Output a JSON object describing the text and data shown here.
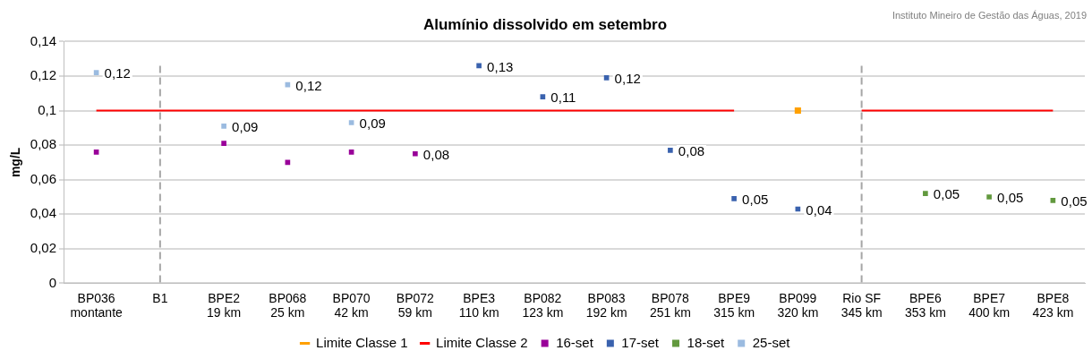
{
  "chart_data": {
    "type": "scatter",
    "title": "Alumínio dissolvido em setembro",
    "ylabel": "mg/L",
    "annotations": [
      "Instituto Mineiro de Gestão das Águas, 2019"
    ],
    "categories": [
      "BP036\nmontante",
      "B1",
      "BPE2\n19 km",
      "BP068\n25 km",
      "BP070\n42 km",
      "BP072\n59 km",
      "BPE3\n110 km",
      "BP082\n123 km",
      "BP083\n192 km",
      "BP078\n251 km",
      "BPE9\n315 km",
      "BP099\n320 km",
      "Rio SF\n345 km",
      "BPE6\n353 km",
      "BPE7\n400 km",
      "BPE8\n423 km"
    ],
    "series": [
      {
        "name": "Limite Classe 1",
        "type": "line",
        "marker": "square",
        "color": "#ffa000",
        "values": [
          null,
          null,
          null,
          null,
          null,
          null,
          null,
          null,
          null,
          null,
          null,
          0.1,
          null,
          null,
          null,
          null
        ]
      },
      {
        "name": "Limite Classe 2",
        "type": "line",
        "marker": "none",
        "color": "#ff0000",
        "values": [
          0.1,
          0.1,
          0.1,
          0.1,
          0.1,
          0.1,
          0.1,
          0.1,
          0.1,
          0.1,
          0.1,
          null,
          0.1,
          0.1,
          0.1,
          0.1
        ]
      },
      {
        "name": "16-set",
        "color": "#990099",
        "values": [
          0.076,
          null,
          0.081,
          0.07,
          0.076,
          0.075,
          null,
          null,
          null,
          null,
          null,
          null,
          null,
          null,
          null,
          null
        ],
        "value_labels": [
          null,
          null,
          null,
          null,
          null,
          "0,08",
          null,
          null,
          null,
          null,
          null,
          null,
          null,
          null,
          null,
          null
        ]
      },
      {
        "name": "17-set",
        "color": "#3a62ae",
        "values": [
          null,
          null,
          null,
          null,
          null,
          null,
          0.126,
          0.108,
          0.119,
          0.077,
          0.049,
          0.043,
          null,
          null,
          null,
          null
        ],
        "value_labels": [
          null,
          null,
          null,
          null,
          null,
          null,
          "0,13",
          "0,11",
          "0,12",
          "0,08",
          "0,05",
          "0,04",
          null,
          null,
          null,
          null
        ]
      },
      {
        "name": "18-set",
        "color": "#62993e",
        "values": [
          null,
          null,
          null,
          null,
          null,
          null,
          null,
          null,
          null,
          null,
          null,
          null,
          null,
          0.052,
          0.05,
          0.048
        ],
        "value_labels": [
          null,
          null,
          null,
          null,
          null,
          null,
          null,
          null,
          null,
          null,
          null,
          null,
          null,
          "0,05",
          "0,05",
          "0,05"
        ]
      },
      {
        "name": "25-set",
        "color": "#9bbbe0",
        "values": [
          0.122,
          null,
          0.091,
          0.115,
          0.093,
          null,
          null,
          null,
          null,
          null,
          null,
          null,
          null,
          null,
          null,
          null
        ],
        "value_labels": [
          "0,12",
          null,
          "0,09",
          "0,12",
          "0,09",
          null,
          null,
          null,
          null,
          null,
          null,
          null,
          null,
          null,
          null,
          null
        ]
      }
    ],
    "ylim": [
      0,
      0.14
    ],
    "yticks": [
      0,
      {
        "value": 0.02,
        "label": "0,02"
      },
      {
        "value": 0.04,
        "label": "0,04"
      },
      {
        "value": 0.06,
        "label": "0,06"
      },
      {
        "value": 0.08,
        "label": "0,08"
      },
      {
        "value": 0.1,
        "label": "0,1"
      },
      {
        "value": 0.12,
        "label": "0,12"
      },
      {
        "value": 0.14,
        "label": "0,14"
      }
    ],
    "ref_lines": [
      {
        "axis": "x",
        "value": "B1",
        "color": "#a6a6a6",
        "line_style": "dashed"
      },
      {
        "axis": "x",
        "value": "Rio SF\n345 km",
        "color": "#a6a6a6",
        "line_style": "dashed"
      }
    ],
    "grid": "y",
    "legend": "bottom",
    "marker": "square"
  }
}
